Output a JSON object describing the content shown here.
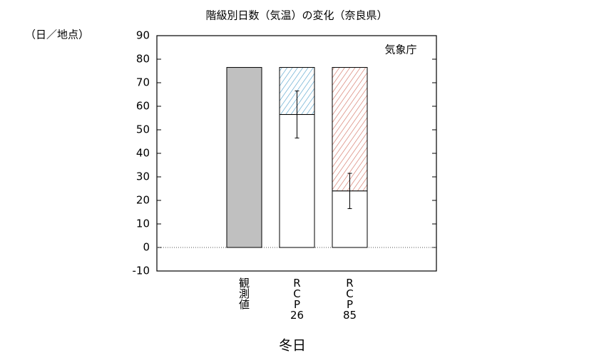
{
  "chart_data": {
    "type": "bar",
    "title": "階級別日数（気温）の変化（奈良県）",
    "y_label": "（日／地点）",
    "x_label": "冬日",
    "annotation": "気象庁",
    "categories": [
      "観測値",
      "RCP26",
      "RCP85"
    ],
    "values": [
      76.5,
      56.5,
      24
    ],
    "colors": [
      "#c0c0c0",
      "#ffffff",
      "#ffffff"
    ],
    "changes": [
      null,
      20,
      52.5
    ],
    "change_colors": [
      null,
      "#4a9cc8",
      "#d06a5a"
    ],
    "errors": [
      null,
      10,
      7.5
    ],
    "ylim": [
      -10,
      90
    ],
    "yticks": [
      -10,
      0,
      10,
      20,
      30,
      40,
      50,
      60,
      70,
      80,
      90
    ],
    "zero_line": true
  }
}
